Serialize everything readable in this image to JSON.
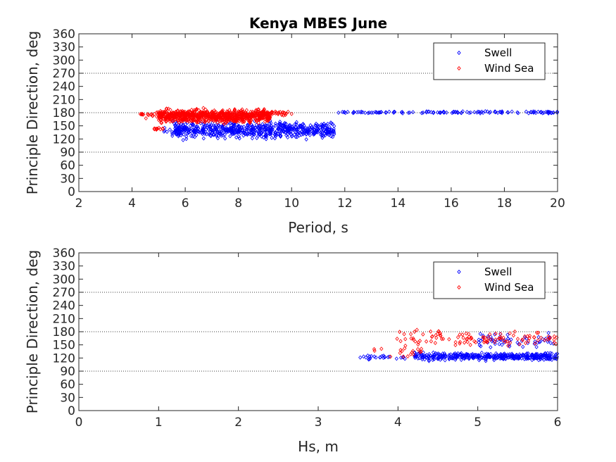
{
  "figure": {
    "title": "Kenya MBES June"
  },
  "colors": {
    "swell": "#0000ff",
    "windsea": "#ff0000",
    "axis": "#262626",
    "refline": "#000000"
  },
  "chart_data": [
    {
      "type": "scatter",
      "id": "period",
      "title": "Kenya MBES June",
      "xlabel": "Period, s",
      "ylabel": "Principle Direction, deg",
      "xlim": [
        2,
        20
      ],
      "ylim": [
        0,
        360
      ],
      "xticks": [
        2,
        4,
        6,
        8,
        10,
        12,
        14,
        16,
        18,
        20
      ],
      "yticks": [
        0,
        30,
        60,
        90,
        120,
        150,
        180,
        210,
        240,
        270,
        300,
        330,
        360
      ],
      "reference_lines": [
        90,
        180,
        270
      ],
      "legend": {
        "position": "top-right",
        "entries": [
          "Swell",
          "Wind Sea"
        ]
      },
      "series": [
        {
          "name": "Swell",
          "color": "#0000ff",
          "clusters": [
            {
              "xmin": 5.5,
              "xmax": 11.6,
              "ymin": 115,
              "ymax": 165,
              "n": 650,
              "seed": 11
            },
            {
              "xmin": 5.2,
              "xmax": 6.5,
              "ymin": 128,
              "ymax": 150,
              "n": 25,
              "seed": 12
            },
            {
              "xmin": 11.5,
              "xmax": 20,
              "ymin": 178,
              "ymax": 184,
              "n": 130,
              "seed": 13
            }
          ]
        },
        {
          "name": "Wind Sea",
          "color": "#ff0000",
          "clusters": [
            {
              "xmin": 5.0,
              "xmax": 9.2,
              "ymin": 152,
              "ymax": 192,
              "n": 800,
              "seed": 21
            },
            {
              "xmin": 4.3,
              "xmax": 5.5,
              "ymin": 165,
              "ymax": 185,
              "n": 30,
              "seed": 22
            },
            {
              "xmin": 4.8,
              "xmax": 5.3,
              "ymin": 138,
              "ymax": 148,
              "n": 10,
              "seed": 23
            },
            {
              "xmin": 8.8,
              "xmax": 10.0,
              "ymin": 172,
              "ymax": 186,
              "n": 40,
              "seed": 24
            }
          ]
        }
      ]
    },
    {
      "type": "scatter",
      "id": "hs",
      "title": "",
      "xlabel": "Hs, m",
      "ylabel": "Principle Direction, deg",
      "xlim": [
        0,
        6
      ],
      "ylim": [
        0,
        360
      ],
      "xticks": [
        0,
        1,
        2,
        3,
        4,
        5,
        6
      ],
      "yticks": [
        0,
        30,
        60,
        90,
        120,
        150,
        180,
        210,
        240,
        270,
        300,
        330,
        360
      ],
      "reference_lines": [
        90,
        180,
        270
      ],
      "legend": {
        "position": "top-right",
        "entries": [
          "Swell",
          "Wind Sea"
        ]
      },
      "series": [
        {
          "name": "Swell",
          "color": "#0000ff",
          "clusters": [
            {
              "xmin": 3.5,
              "xmax": 4.1,
              "ymin": 114,
              "ymax": 128,
              "n": 25,
              "seed": 31
            },
            {
              "xmin": 4.2,
              "xmax": 6.0,
              "ymin": 112,
              "ymax": 135,
              "n": 380,
              "seed": 32
            },
            {
              "xmin": 5.0,
              "xmax": 6.0,
              "ymin": 135,
              "ymax": 185,
              "n": 60,
              "seed": 33
            }
          ]
        },
        {
          "name": "Wind Sea",
          "color": "#ff0000",
          "clusters": [
            {
              "xmin": 3.5,
              "xmax": 4.3,
              "ymin": 118,
              "ymax": 150,
              "n": 18,
              "seed": 41
            },
            {
              "xmin": 3.95,
              "xmax": 6.0,
              "ymin": 140,
              "ymax": 188,
              "n": 110,
              "seed": 42
            }
          ]
        }
      ]
    }
  ]
}
